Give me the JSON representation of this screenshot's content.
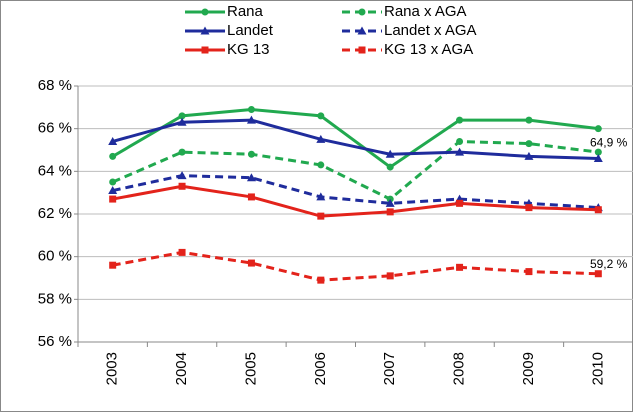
{
  "chart_data": {
    "type": "line",
    "categories": [
      "2003",
      "2004",
      "2005",
      "2006",
      "2007",
      "2008",
      "2009",
      "2010"
    ],
    "series": [
      {
        "name": "Rana",
        "color": "#21a94f",
        "dash": false,
        "marker": "circle",
        "values": [
          64.7,
          66.6,
          66.9,
          66.6,
          64.2,
          66.4,
          66.4,
          66.0
        ]
      },
      {
        "name": "Rana x AGA",
        "color": "#21a94f",
        "dash": true,
        "marker": "circle",
        "values": [
          63.5,
          64.9,
          64.8,
          64.3,
          62.7,
          65.4,
          65.3,
          64.9
        ],
        "value_labels": [
          null,
          null,
          null,
          null,
          null,
          null,
          null,
          "64,9 %"
        ]
      },
      {
        "name": "Landet",
        "color": "#1f2c9c",
        "dash": false,
        "marker": "triangle",
        "values": [
          65.4,
          66.3,
          66.4,
          65.5,
          64.8,
          64.9,
          64.7,
          64.6
        ]
      },
      {
        "name": "Landet x AGA",
        "color": "#1f2c9c",
        "dash": true,
        "marker": "triangle",
        "values": [
          63.1,
          63.8,
          63.7,
          62.8,
          62.5,
          62.7,
          62.5,
          62.3
        ]
      },
      {
        "name": "KG 13",
        "color": "#e3231b",
        "dash": false,
        "marker": "square",
        "values": [
          62.7,
          63.3,
          62.8,
          61.9,
          62.1,
          62.5,
          62.3,
          62.2
        ]
      },
      {
        "name": "KG 13 x AGA",
        "color": "#e3231b",
        "dash": true,
        "marker": "square",
        "values": [
          59.6,
          60.2,
          59.7,
          58.9,
          59.1,
          59.5,
          59.3,
          59.2
        ],
        "value_labels": [
          null,
          null,
          null,
          null,
          null,
          null,
          null,
          "59,2 %"
        ]
      }
    ],
    "ylim": [
      56,
      68
    ],
    "yticks": [
      {
        "value": 56,
        "label": "56 %"
      },
      {
        "value": 58,
        "label": "58 %"
      },
      {
        "value": 60,
        "label": "60 %"
      },
      {
        "value": 62,
        "label": "62 %"
      },
      {
        "value": 64,
        "label": "64 %"
      },
      {
        "value": 66,
        "label": "66 %"
      },
      {
        "value": 68,
        "label": "68 %"
      }
    ],
    "grid": true,
    "legend": "top"
  }
}
